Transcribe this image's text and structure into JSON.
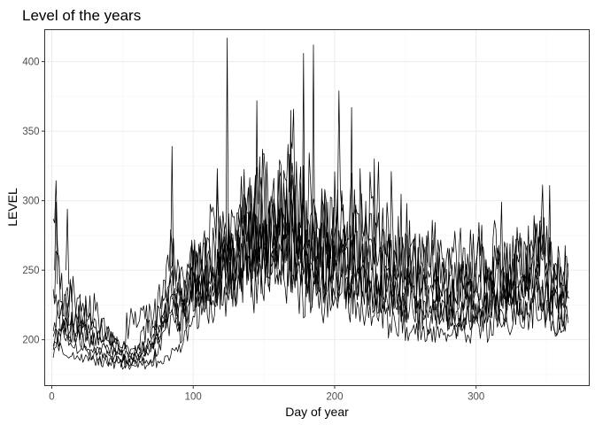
{
  "chart_data": {
    "type": "line",
    "title": "Level of the years",
    "xlabel": "Day of year",
    "ylabel": "LEVEL",
    "xlim": [
      -5,
      380
    ],
    "ylim": [
      167,
      423
    ],
    "xticks": [
      0,
      100,
      200,
      300
    ],
    "yticks": [
      200,
      250,
      300,
      350,
      400
    ],
    "grid": true,
    "legend": "none",
    "line_color": "#000000",
    "series": [
      {
        "x": [
          1,
          8,
          15,
          22,
          29,
          36,
          43,
          50,
          57,
          64,
          71,
          78,
          85,
          92,
          99,
          106,
          113,
          120,
          127,
          134,
          141,
          148,
          155,
          162,
          169,
          176,
          183,
          190,
          197,
          204,
          211,
          218,
          225,
          232,
          239,
          246,
          253,
          260,
          267,
          274,
          281,
          288,
          295,
          302,
          309,
          316,
          323,
          330,
          337,
          344,
          351,
          358,
          365
        ],
        "y": [
          240,
          215,
          205,
          210,
          195,
          190,
          188,
          192,
          185,
          190,
          200,
          210,
          225,
          215,
          230,
          240,
          235,
          245,
          260,
          270,
          280,
          265,
          275,
          290,
          280,
          270,
          260,
          255,
          265,
          260,
          250,
          245,
          240,
          235,
          230,
          225,
          230,
          220,
          215,
          225,
          210,
          215,
          220,
          210,
          225,
          215,
          220,
          230,
          215,
          225,
          220,
          210,
          215
        ]
      },
      {
        "x": [
          1,
          8,
          15,
          22,
          29,
          36,
          43,
          50,
          57,
          64,
          71,
          78,
          85,
          92,
          99,
          106,
          113,
          120,
          127,
          134,
          141,
          148,
          155,
          162,
          169,
          176,
          183,
          190,
          197,
          204,
          211,
          218,
          225,
          232,
          239,
          246,
          253,
          260,
          267,
          274,
          281,
          288,
          295,
          302,
          309,
          316,
          323,
          330,
          337,
          344,
          351,
          358,
          365
        ],
        "y": [
          298,
          220,
          230,
          215,
          225,
          205,
          200,
          195,
          215,
          225,
          210,
          240,
          260,
          230,
          250,
          245,
          275,
          300,
          240,
          255,
          290,
          310,
          280,
          300,
          320,
          285,
          300,
          270,
          280,
          300,
          290,
          270,
          285,
          300,
          275,
          260,
          270,
          250,
          265,
          255,
          245,
          260,
          240,
          255,
          250,
          265,
          245,
          260,
          250,
          270,
          255,
          240,
          250
        ]
      },
      {
        "x": [
          1,
          8,
          15,
          22,
          29,
          36,
          43,
          50,
          57,
          64,
          71,
          78,
          85,
          92,
          99,
          106,
          113,
          120,
          127,
          134,
          141,
          148,
          155,
          162,
          169,
          176,
          183,
          190,
          197,
          204,
          211,
          218,
          225,
          232,
          239,
          246,
          253,
          260,
          267,
          274,
          281,
          288,
          295,
          302,
          309,
          316,
          323,
          330,
          337,
          344,
          351,
          358,
          365
        ],
        "y": [
          210,
          200,
          195,
          190,
          188,
          186,
          185,
          183,
          182,
          184,
          186,
          200,
          215,
          205,
          235,
          250,
          240,
          255,
          270,
          265,
          295,
          260,
          275,
          250,
          265,
          285,
          270,
          240,
          255,
          270,
          245,
          255,
          260,
          240,
          250,
          235,
          245,
          230,
          240,
          235,
          225,
          240,
          230,
          245,
          235,
          250,
          240,
          255,
          245,
          260,
          250,
          235,
          245
        ]
      },
      {
        "x": [
          1,
          8,
          15,
          22,
          29,
          36,
          43,
          50,
          57,
          64,
          71,
          78,
          85,
          92,
          99,
          106,
          113,
          120,
          127,
          134,
          141,
          148,
          155,
          162,
          169,
          176,
          183,
          190,
          197,
          204,
          211,
          218,
          225,
          232,
          239,
          246,
          253,
          260,
          267,
          274,
          281,
          288,
          295,
          302,
          309,
          316,
          323,
          330,
          337,
          344,
          351,
          358,
          365
        ],
        "y": [
          195,
          190,
          187,
          186,
          185,
          184,
          183,
          182,
          181,
          183,
          182,
          185,
          190,
          196,
          210,
          230,
          220,
          240,
          230,
          250,
          240,
          235,
          255,
          245,
          240,
          230,
          235,
          225,
          230,
          240,
          225,
          220,
          215,
          225,
          210,
          215,
          205,
          210,
          200,
          205,
          198,
          210,
          202,
          215,
          205,
          220,
          210,
          225,
          215,
          230,
          220,
          205,
          212
        ]
      },
      {
        "x": [
          1,
          8,
          15,
          22,
          29,
          36,
          43,
          50,
          57,
          64,
          71,
          78,
          85,
          92,
          99,
          106,
          113,
          120,
          127,
          134,
          141,
          148,
          155,
          162,
          169,
          176,
          183,
          190,
          197,
          204,
          211,
          218,
          225,
          232,
          239,
          246,
          253,
          260,
          267,
          274,
          281,
          288,
          295,
          302,
          309,
          316,
          323,
          330,
          337,
          344,
          351,
          358,
          365
        ],
        "y": [
          205,
          225,
          210,
          200,
          190,
          195,
          192,
          189,
          187,
          190,
          195,
          205,
          230,
          220,
          245,
          235,
          260,
          250,
          280,
          240,
          300,
          255,
          290,
          265,
          300,
          250,
          280,
          260,
          275,
          250,
          265,
          280,
          255,
          265,
          245,
          255,
          240,
          260,
          235,
          250,
          230,
          245,
          235,
          250,
          240,
          260,
          235,
          255,
          245,
          265,
          240,
          230,
          248
        ]
      },
      {
        "x": [
          1,
          8,
          15,
          22,
          29,
          36,
          43,
          50,
          57,
          64,
          71,
          78,
          85,
          92,
          99,
          106,
          113,
          120,
          127,
          134,
          141,
          148,
          155,
          162,
          169,
          176,
          183,
          190,
          197,
          204,
          211,
          218,
          225,
          232,
          239,
          246,
          253,
          260,
          267,
          274,
          281,
          288,
          295,
          302,
          309,
          316,
          323,
          330,
          337,
          344,
          351,
          358,
          365
        ],
        "y": [
          200,
          205,
          215,
          225,
          210,
          200,
          198,
          195,
          192,
          194,
          198,
          210,
          240,
          215,
          235,
          260,
          245,
          265,
          255,
          275,
          265,
          285,
          260,
          270,
          255,
          265,
          245,
          250,
          240,
          255,
          235,
          240,
          250,
          230,
          240,
          225,
          235,
          220,
          230,
          215,
          225,
          220,
          230,
          220,
          235,
          225,
          240,
          230,
          245,
          235,
          230,
          225,
          235
        ]
      },
      {
        "x": [
          1,
          8,
          15,
          22,
          29,
          36,
          43,
          50,
          57,
          64,
          71,
          78,
          85,
          92,
          99,
          106,
          113,
          120,
          127,
          134,
          141,
          148,
          155,
          162,
          169,
          176,
          183,
          190,
          197,
          204,
          211,
          218,
          225,
          232,
          239,
          246,
          253,
          260,
          267,
          274,
          281,
          288,
          295,
          302,
          309,
          316,
          323,
          330,
          337,
          344,
          351,
          358,
          365
        ],
        "y": [
          190,
          210,
          200,
          215,
          205,
          195,
          190,
          186,
          184,
          188,
          194,
          215,
          230,
          235,
          255,
          240,
          250,
          280,
          265,
          290,
          275,
          300,
          285,
          295,
          275,
          290,
          265,
          285,
          270,
          280,
          260,
          275,
          265,
          255,
          270,
          250,
          260,
          245,
          255,
          240,
          250,
          235,
          245,
          255,
          240,
          250,
          245,
          260,
          250,
          275,
          255,
          245,
          255
        ]
      },
      {
        "x": [
          2,
          9,
          16,
          23,
          30,
          37,
          44,
          51,
          58,
          65,
          72,
          79,
          86,
          93,
          100,
          107,
          114,
          121,
          128,
          135,
          142,
          149,
          156,
          163,
          170,
          177,
          184,
          191,
          198,
          205,
          212,
          219,
          226,
          233,
          240,
          247,
          254,
          261,
          268,
          275,
          282,
          289,
          296,
          303,
          310,
          317,
          324,
          331,
          338,
          345,
          352,
          359,
          366
        ],
        "y": [
          250,
          230,
          220,
          205,
          200,
          210,
          198,
          185,
          190,
          205,
          215,
          230,
          250,
          220,
          240,
          250,
          230,
          260,
          245,
          270,
          255,
          260,
          250,
          265,
          245,
          255,
          240,
          245,
          235,
          250,
          235,
          245,
          240,
          225,
          235,
          220,
          230,
          215,
          225,
          210,
          220,
          212,
          225,
          215,
          230,
          220,
          235,
          225,
          240,
          230,
          225,
          220,
          230
        ]
      }
    ],
    "annotations": [
      {
        "x": 124,
        "y": 417
      },
      {
        "x": 185,
        "y": 412
      },
      {
        "x": 178,
        "y": 406
      },
      {
        "x": 145,
        "y": 372
      },
      {
        "x": 212,
        "y": 367
      },
      {
        "x": 169,
        "y": 365
      },
      {
        "x": 85,
        "y": 339
      },
      {
        "x": 352,
        "y": 311
      },
      {
        "x": 3,
        "y": 299
      },
      {
        "x": 11,
        "y": 294
      },
      {
        "x": 228,
        "y": 330
      }
    ]
  }
}
